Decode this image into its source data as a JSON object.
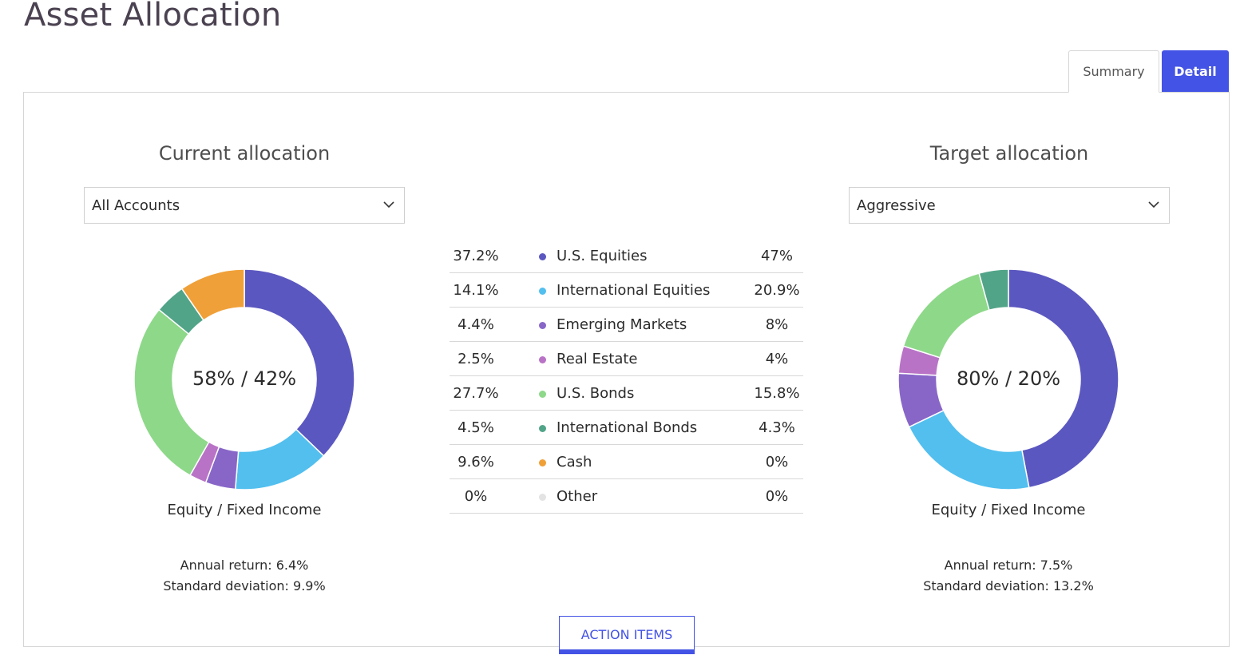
{
  "page": {
    "title": "Asset Allocation"
  },
  "tabs": [
    {
      "label": "Summary",
      "active": false
    },
    {
      "label": "Detail",
      "active": true
    }
  ],
  "current": {
    "heading": "Current allocation",
    "select_value": "All Accounts",
    "center_label": "58% / 42%",
    "caption": "Equity / Fixed Income",
    "annual_return": "Annual return: 6.4%",
    "std_dev": "Standard deviation: 9.9%"
  },
  "target": {
    "heading": "Target allocation",
    "select_value": "Aggressive",
    "center_label": "80% / 20%",
    "caption": "Equity / Fixed Income",
    "annual_return": "Annual return: 7.5%",
    "std_dev": "Standard deviation: 13.2%"
  },
  "allocation_rows": [
    {
      "current": "37.2%",
      "name": "U.S. Equities",
      "target": "47%",
      "color": "#5b57c0"
    },
    {
      "current": "14.1%",
      "name": "International Equities",
      "target": "20.9%",
      "color": "#52bfef"
    },
    {
      "current": "4.4%",
      "name": "Emerging Markets",
      "target": "8%",
      "color": "#8866c8"
    },
    {
      "current": "2.5%",
      "name": "Real Estate",
      "target": "4%",
      "color": "#b873c6"
    },
    {
      "current": "27.7%",
      "name": "U.S. Bonds",
      "target": "15.8%",
      "color": "#8ed88a"
    },
    {
      "current": "4.5%",
      "name": "International Bonds",
      "target": "4.3%",
      "color": "#52a489"
    },
    {
      "current": "9.6%",
      "name": "Cash",
      "target": "0%",
      "color": "#f0a038"
    },
    {
      "current": "0%",
      "name": "Other",
      "target": "0%",
      "color": "#e3e3e3"
    }
  ],
  "chart_data": [
    {
      "type": "pie",
      "subtype": "donut",
      "categories": [
        "U.S. Equities",
        "International Equities",
        "Emerging Markets",
        "Real Estate",
        "U.S. Bonds",
        "International Bonds",
        "Cash",
        "Other"
      ],
      "values": [
        37.2,
        14.1,
        4.4,
        2.5,
        27.7,
        4.5,
        9.6,
        0
      ],
      "colors": [
        "#5b57c0",
        "#52bfef",
        "#8866c8",
        "#b873c6",
        "#8ed88a",
        "#52a489",
        "#f0a038",
        "#e3e3e3"
      ]
    },
    {
      "type": "pie",
      "subtype": "donut",
      "categories": [
        "U.S. Equities",
        "International Equities",
        "Emerging Markets",
        "Real Estate",
        "U.S. Bonds",
        "International Bonds",
        "Cash",
        "Other"
      ],
      "values": [
        47,
        20.9,
        8,
        4,
        15.8,
        4.3,
        0,
        0
      ],
      "colors": [
        "#5b57c0",
        "#52bfef",
        "#8866c8",
        "#b873c6",
        "#8ed88a",
        "#52a489",
        "#f0a038",
        "#e3e3e3"
      ]
    }
  ],
  "action": {
    "label": "ACTION ITEMS"
  }
}
